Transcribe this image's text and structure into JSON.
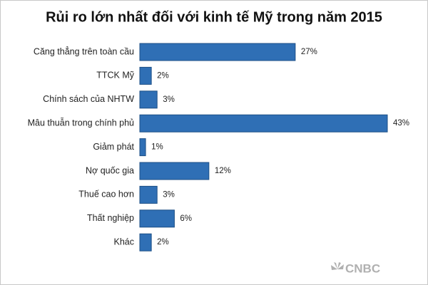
{
  "chart_data": {
    "type": "barh",
    "title": "Rủi ro lớn nhất đối với kinh tế Mỹ trong năm 2015",
    "categories": [
      "Căng thẳng trên toàn cầu",
      "TTCK Mỹ",
      "Chính sách của NHTW",
      "Mâu thuẫn trong chính phủ",
      "Giảm phát",
      "Nợ quốc gia",
      "Thuế cao hơn",
      "Thất nghiệp",
      "Khác"
    ],
    "values": [
      27,
      2,
      3,
      43,
      1,
      12,
      3,
      6,
      2
    ],
    "value_labels": [
      "27%",
      "2%",
      "3%",
      "43%",
      "1%",
      "12%",
      "3%",
      "6%",
      "2%"
    ],
    "color": "#2f6fb5",
    "logo": "CNBC"
  }
}
